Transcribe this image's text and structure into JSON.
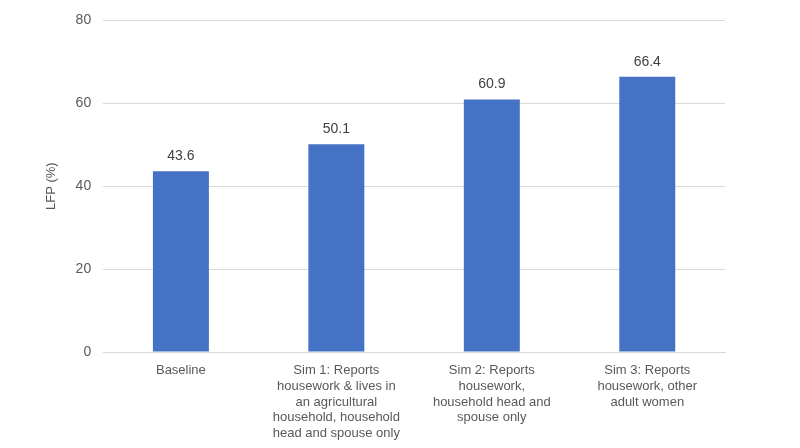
{
  "chart_data": {
    "type": "bar",
    "y_label": "LFP (%)",
    "categories": [
      "Baseline",
      "Sim 1: Reports housework & lives in an agricultural household, household head and spouse only",
      "Sim 2: Reports housework, household head and spouse only",
      "Sim 3: Reports housework, other adult women"
    ],
    "values": [
      43.6,
      50.1,
      60.9,
      66.4
    ],
    "color": "#4472c4",
    "ylim": [
      0,
      80
    ],
    "yticks": [
      0,
      20,
      40,
      60,
      80
    ],
    "grid": true,
    "data_labels": true
  }
}
